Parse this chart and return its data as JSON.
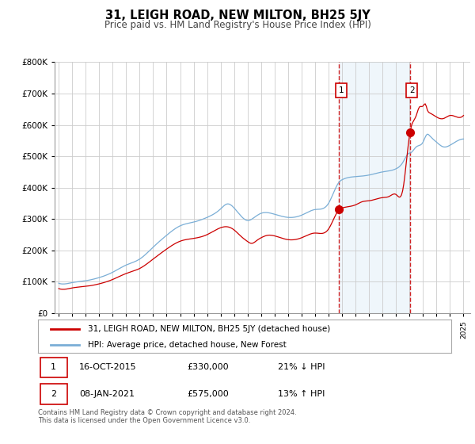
{
  "title": "31, LEIGH ROAD, NEW MILTON, BH25 5JY",
  "subtitle": "Price paid vs. HM Land Registry's House Price Index (HPI)",
  "legend_line1": "31, LEIGH ROAD, NEW MILTON, BH25 5JY (detached house)",
  "legend_line2": "HPI: Average price, detached house, New Forest",
  "transaction1": {
    "date": "16-OCT-2015",
    "price": 330000,
    "pct": "21%",
    "dir": "↓",
    "label": "1",
    "year": 2015.79
  },
  "transaction2": {
    "date": "08-JAN-2021",
    "price": 575000,
    "pct": "13%",
    "dir": "↑",
    "label": "2",
    "year": 2021.03
  },
  "footer1": "Contains HM Land Registry data © Crown copyright and database right 2024.",
  "footer2": "This data is licensed under the Open Government Licence v3.0.",
  "hpi_color": "#7aaed6",
  "price_color": "#cc0000",
  "shade_color": "#d8eaf7",
  "background_color": "#ffffff",
  "grid_color": "#cccccc"
}
